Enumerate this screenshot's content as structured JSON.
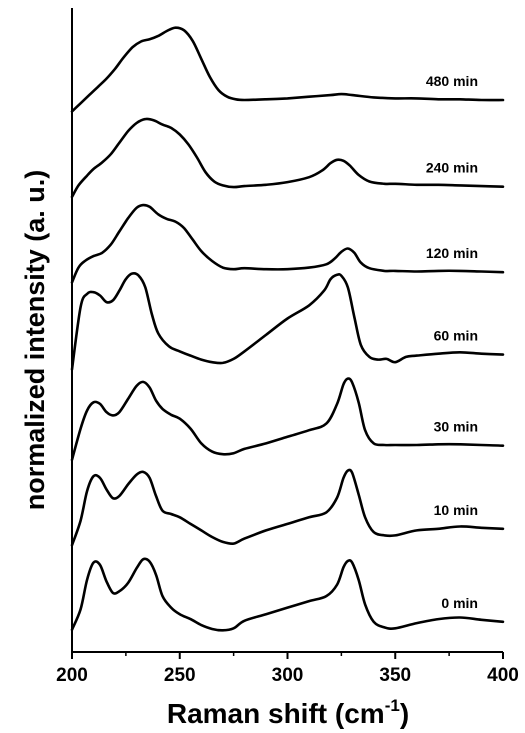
{
  "chart_data": {
    "type": "line",
    "xlabel": "Raman shift (cm",
    "xlabel_sup": "-1",
    "xlabel_tail": ")",
    "ylabel": "normalized intensity (a. u.)",
    "xlim": [
      200,
      400
    ],
    "x_ticks": [
      200,
      250,
      300,
      350,
      400
    ],
    "x_tick_labels": [
      "200",
      "250",
      "300",
      "350",
      "400"
    ],
    "y_ticks_shown": false,
    "grid": false,
    "series": [
      {
        "name": "0 min",
        "baseline": 0.0,
        "points": [
          [
            200,
            0.08
          ],
          [
            204,
            0.7
          ],
          [
            207,
            1.6
          ],
          [
            210,
            2.12
          ],
          [
            213,
            2.05
          ],
          [
            216,
            1.55
          ],
          [
            219,
            1.2
          ],
          [
            222,
            1.25
          ],
          [
            226,
            1.5
          ],
          [
            230,
            1.95
          ],
          [
            233,
            2.22
          ],
          [
            236,
            2.15
          ],
          [
            239,
            1.75
          ],
          [
            242,
            1.1
          ],
          [
            246,
            0.75
          ],
          [
            250,
            0.55
          ],
          [
            255,
            0.4
          ],
          [
            260,
            0.22
          ],
          [
            265,
            0.1
          ],
          [
            270,
            0.06
          ],
          [
            275,
            0.12
          ],
          [
            280,
            0.35
          ],
          [
            290,
            0.55
          ],
          [
            300,
            0.75
          ],
          [
            310,
            0.95
          ],
          [
            318,
            1.1
          ],
          [
            323,
            1.45
          ],
          [
            326,
            1.98
          ],
          [
            328,
            2.17
          ],
          [
            330,
            2.12
          ],
          [
            333,
            1.6
          ],
          [
            336,
            0.85
          ],
          [
            340,
            0.32
          ],
          [
            345,
            0.15
          ],
          [
            350,
            0.12
          ],
          [
            360,
            0.28
          ],
          [
            370,
            0.4
          ],
          [
            380,
            0.45
          ],
          [
            390,
            0.38
          ],
          [
            400,
            0.32
          ]
        ]
      },
      {
        "name": "10 min",
        "baseline": 2.6,
        "points": [
          [
            200,
            2.65
          ],
          [
            204,
            3.4
          ],
          [
            207,
            4.3
          ],
          [
            210,
            4.75
          ],
          [
            213,
            4.7
          ],
          [
            216,
            4.35
          ],
          [
            219,
            4.08
          ],
          [
            222,
            4.15
          ],
          [
            226,
            4.5
          ],
          [
            230,
            4.8
          ],
          [
            233,
            4.88
          ],
          [
            236,
            4.7
          ],
          [
            239,
            4.15
          ],
          [
            242,
            3.7
          ],
          [
            246,
            3.6
          ],
          [
            250,
            3.5
          ],
          [
            255,
            3.3
          ],
          [
            260,
            3.1
          ],
          [
            265,
            2.9
          ],
          [
            270,
            2.75
          ],
          [
            275,
            2.7
          ],
          [
            280,
            2.85
          ],
          [
            290,
            3.1
          ],
          [
            300,
            3.3
          ],
          [
            310,
            3.5
          ],
          [
            318,
            3.65
          ],
          [
            323,
            4.1
          ],
          [
            326,
            4.7
          ],
          [
            328,
            4.92
          ],
          [
            330,
            4.85
          ],
          [
            333,
            4.2
          ],
          [
            336,
            3.5
          ],
          [
            340,
            3.05
          ],
          [
            345,
            2.95
          ],
          [
            350,
            2.95
          ],
          [
            360,
            3.1
          ],
          [
            370,
            3.15
          ],
          [
            380,
            3.22
          ],
          [
            390,
            3.18
          ],
          [
            400,
            3.15
          ]
        ]
      },
      {
        "name": "30 min",
        "baseline": 5.2,
        "points": [
          [
            200,
            5.25
          ],
          [
            204,
            6.2
          ],
          [
            207,
            6.75
          ],
          [
            210,
            7.0
          ],
          [
            213,
            6.95
          ],
          [
            216,
            6.7
          ],
          [
            219,
            6.6
          ],
          [
            222,
            6.7
          ],
          [
            226,
            7.1
          ],
          [
            230,
            7.5
          ],
          [
            233,
            7.62
          ],
          [
            236,
            7.45
          ],
          [
            239,
            7.05
          ],
          [
            242,
            6.8
          ],
          [
            246,
            6.62
          ],
          [
            250,
            6.5
          ],
          [
            255,
            6.2
          ],
          [
            260,
            5.75
          ],
          [
            265,
            5.5
          ],
          [
            270,
            5.42
          ],
          [
            275,
            5.45
          ],
          [
            280,
            5.58
          ],
          [
            290,
            5.75
          ],
          [
            300,
            5.95
          ],
          [
            310,
            6.15
          ],
          [
            318,
            6.35
          ],
          [
            323,
            6.95
          ],
          [
            326,
            7.55
          ],
          [
            328,
            7.72
          ],
          [
            330,
            7.6
          ],
          [
            333,
            7.0
          ],
          [
            336,
            6.15
          ],
          [
            340,
            5.75
          ],
          [
            345,
            5.7
          ],
          [
            350,
            5.7
          ],
          [
            360,
            5.7
          ],
          [
            370,
            5.72
          ],
          [
            380,
            5.72
          ],
          [
            390,
            5.7
          ],
          [
            400,
            5.68
          ]
        ]
      },
      {
        "name": "60 min",
        "baseline": 7.8,
        "points": [
          [
            200,
            8.0
          ],
          [
            204,
            9.9
          ],
          [
            207,
            10.3
          ],
          [
            210,
            10.35
          ],
          [
            213,
            10.25
          ],
          [
            216,
            10.05
          ],
          [
            219,
            10.1
          ],
          [
            222,
            10.4
          ],
          [
            225,
            10.75
          ],
          [
            228,
            10.92
          ],
          [
            231,
            10.85
          ],
          [
            234,
            10.5
          ],
          [
            237,
            9.7
          ],
          [
            240,
            9.1
          ],
          [
            245,
            8.7
          ],
          [
            250,
            8.55
          ],
          [
            255,
            8.42
          ],
          [
            260,
            8.3
          ],
          [
            265,
            8.22
          ],
          [
            270,
            8.2
          ],
          [
            275,
            8.32
          ],
          [
            280,
            8.55
          ],
          [
            290,
            9.05
          ],
          [
            300,
            9.55
          ],
          [
            310,
            9.95
          ],
          [
            317,
            10.4
          ],
          [
            320,
            10.75
          ],
          [
            323,
            10.88
          ],
          [
            325,
            10.85
          ],
          [
            328,
            10.5
          ],
          [
            331,
            9.6
          ],
          [
            334,
            8.75
          ],
          [
            338,
            8.38
          ],
          [
            342,
            8.3
          ],
          [
            346,
            8.32
          ],
          [
            350,
            8.22
          ],
          [
            355,
            8.38
          ],
          [
            360,
            8.42
          ],
          [
            370,
            8.48
          ],
          [
            380,
            8.52
          ],
          [
            390,
            8.48
          ],
          [
            400,
            8.45
          ]
        ]
      },
      {
        "name": "120 min",
        "baseline": 10.6,
        "points": [
          [
            200,
            10.65
          ],
          [
            203,
            11.1
          ],
          [
            206,
            11.3
          ],
          [
            210,
            11.45
          ],
          [
            214,
            11.55
          ],
          [
            218,
            11.8
          ],
          [
            222,
            12.2
          ],
          [
            226,
            12.6
          ],
          [
            230,
            12.92
          ],
          [
            233,
            13.0
          ],
          [
            236,
            12.95
          ],
          [
            240,
            12.72
          ],
          [
            244,
            12.58
          ],
          [
            248,
            12.5
          ],
          [
            252,
            12.3
          ],
          [
            256,
            11.95
          ],
          [
            260,
            11.6
          ],
          [
            265,
            11.3
          ],
          [
            270,
            11.1
          ],
          [
            275,
            11.05
          ],
          [
            280,
            11.08
          ],
          [
            290,
            11.05
          ],
          [
            300,
            11.05
          ],
          [
            310,
            11.1
          ],
          [
            318,
            11.2
          ],
          [
            322,
            11.38
          ],
          [
            325,
            11.58
          ],
          [
            328,
            11.68
          ],
          [
            331,
            11.55
          ],
          [
            334,
            11.25
          ],
          [
            338,
            11.08
          ],
          [
            345,
            11.0
          ],
          [
            350,
            11.0
          ],
          [
            360,
            10.98
          ],
          [
            370,
            11.0
          ],
          [
            380,
            11.0
          ],
          [
            390,
            10.98
          ],
          [
            400,
            10.96
          ]
        ]
      },
      {
        "name": "240 min",
        "baseline": 13.2,
        "points": [
          [
            200,
            13.25
          ],
          [
            203,
            13.6
          ],
          [
            207,
            13.9
          ],
          [
            210,
            14.1
          ],
          [
            214,
            14.3
          ],
          [
            218,
            14.55
          ],
          [
            222,
            14.9
          ],
          [
            226,
            15.25
          ],
          [
            230,
            15.5
          ],
          [
            234,
            15.62
          ],
          [
            238,
            15.58
          ],
          [
            242,
            15.45
          ],
          [
            246,
            15.35
          ],
          [
            250,
            15.15
          ],
          [
            254,
            14.85
          ],
          [
            258,
            14.45
          ],
          [
            262,
            14.0
          ],
          [
            266,
            13.72
          ],
          [
            270,
            13.6
          ],
          [
            275,
            13.55
          ],
          [
            280,
            13.58
          ],
          [
            290,
            13.62
          ],
          [
            300,
            13.7
          ],
          [
            310,
            13.85
          ],
          [
            316,
            14.05
          ],
          [
            320,
            14.28
          ],
          [
            323,
            14.38
          ],
          [
            326,
            14.35
          ],
          [
            329,
            14.2
          ],
          [
            333,
            13.92
          ],
          [
            338,
            13.72
          ],
          [
            345,
            13.65
          ],
          [
            350,
            13.65
          ],
          [
            360,
            13.62
          ],
          [
            370,
            13.62
          ],
          [
            380,
            13.6
          ],
          [
            390,
            13.58
          ],
          [
            400,
            13.56
          ]
        ]
      },
      {
        "name": "480 min",
        "baseline": 15.8,
        "points": [
          [
            200,
            15.85
          ],
          [
            204,
            16.1
          ],
          [
            208,
            16.35
          ],
          [
            212,
            16.6
          ],
          [
            216,
            16.85
          ],
          [
            220,
            17.15
          ],
          [
            224,
            17.5
          ],
          [
            228,
            17.8
          ],
          [
            232,
            17.98
          ],
          [
            236,
            18.05
          ],
          [
            240,
            18.15
          ],
          [
            244,
            18.3
          ],
          [
            248,
            18.4
          ],
          [
            252,
            18.32
          ],
          [
            256,
            18.0
          ],
          [
            260,
            17.45
          ],
          [
            264,
            16.9
          ],
          [
            268,
            16.5
          ],
          [
            272,
            16.3
          ],
          [
            276,
            16.22
          ],
          [
            280,
            16.2
          ],
          [
            290,
            16.22
          ],
          [
            300,
            16.25
          ],
          [
            310,
            16.3
          ],
          [
            320,
            16.35
          ],
          [
            325,
            16.38
          ],
          [
            330,
            16.35
          ],
          [
            340,
            16.28
          ],
          [
            350,
            16.25
          ],
          [
            360,
            16.25
          ],
          [
            370,
            16.22
          ],
          [
            380,
            16.22
          ],
          [
            390,
            16.2
          ],
          [
            400,
            16.2
          ]
        ]
      }
    ]
  }
}
